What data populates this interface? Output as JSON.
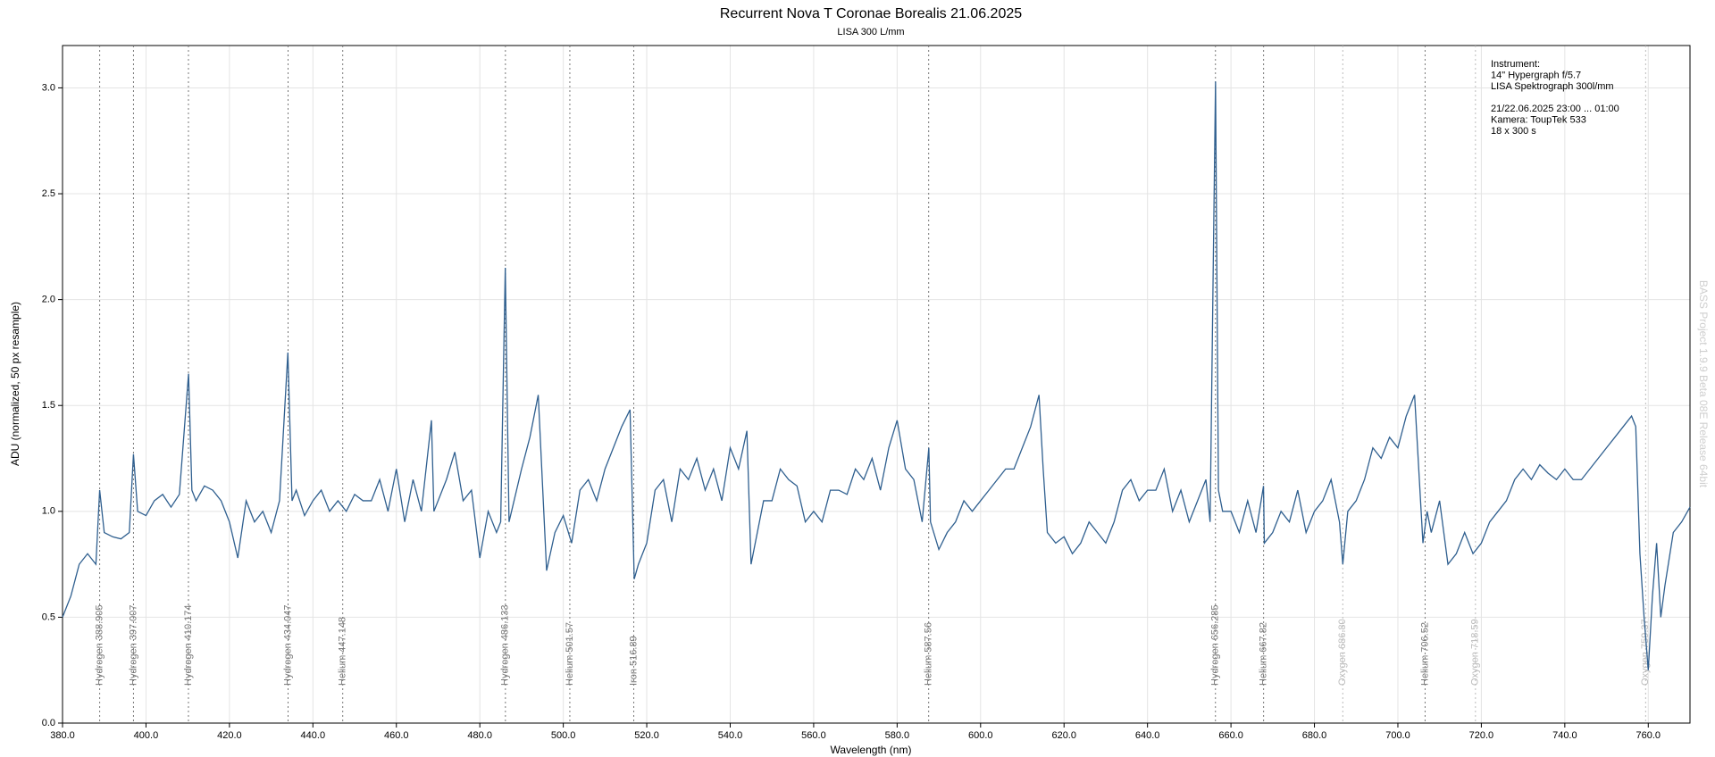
{
  "chart_data": {
    "type": "line",
    "title": "Recurrent Nova T Coronae Borealis  21.06.2025",
    "subtitle": "LISA 300 L/mm",
    "x_label": "Wavelength (nm)",
    "y_label": "ADU (normalized, 50 px resample)",
    "color": "#2f5f8f",
    "grid": true,
    "xlim": [
      380,
      770
    ],
    "ylim": [
      0,
      3.2
    ],
    "xticks": [
      {
        "value": 380,
        "label": "380.0"
      },
      {
        "value": 400,
        "label": "400.0"
      },
      {
        "value": 420,
        "label": "420.0"
      },
      {
        "value": 440,
        "label": "440.0"
      },
      {
        "value": 460,
        "label": "460.0"
      },
      {
        "value": 480,
        "label": "480.0"
      },
      {
        "value": 500,
        "label": "500.0"
      },
      {
        "value": 520,
        "label": "520.0"
      },
      {
        "value": 540,
        "label": "540.0"
      },
      {
        "value": 560,
        "label": "560.0"
      },
      {
        "value": 580,
        "label": "580.0"
      },
      {
        "value": 600,
        "label": "600.0"
      },
      {
        "value": 620,
        "label": "620.0"
      },
      {
        "value": 640,
        "label": "640.0"
      },
      {
        "value": 660,
        "label": "660.0"
      },
      {
        "value": 680,
        "label": "680.0"
      },
      {
        "value": 700,
        "label": "700.0"
      },
      {
        "value": 720,
        "label": "720.0"
      },
      {
        "value": 740,
        "label": "740.0"
      },
      {
        "value": 760,
        "label": "760.0"
      }
    ],
    "yticks": [
      {
        "value": 0,
        "label": "0.0"
      },
      {
        "value": 0.5,
        "label": "0.5"
      },
      {
        "value": 1,
        "label": "1.0"
      },
      {
        "value": 1.5,
        "label": "1.5"
      },
      {
        "value": 2,
        "label": "2.0"
      },
      {
        "value": 2.5,
        "label": "2.5"
      },
      {
        "value": 3,
        "label": "3.0"
      }
    ],
    "x": [
      380,
      382,
      384,
      386,
      388,
      388.9,
      390,
      392,
      394,
      396,
      397,
      398,
      400,
      402,
      404,
      406,
      408,
      410.2,
      411,
      412,
      414,
      416,
      418,
      420,
      422,
      424,
      426,
      428,
      430,
      432,
      434,
      435,
      436,
      438,
      440,
      442,
      444,
      446,
      448,
      450,
      452,
      454,
      456,
      458,
      460,
      462,
      464,
      466,
      468.4,
      469,
      472,
      474,
      476,
      478,
      480,
      482,
      484,
      485,
      486.1,
      487,
      490,
      492,
      494,
      496,
      498,
      500,
      502,
      504,
      506,
      508,
      510,
      512,
      514,
      516,
      517,
      518,
      520,
      522,
      524,
      526,
      528,
      530,
      532,
      534,
      536,
      538,
      540,
      542,
      544,
      545,
      546,
      548,
      550,
      552,
      554,
      556,
      558,
      560,
      562,
      564,
      566,
      568,
      570,
      572,
      574,
      576,
      578,
      580,
      582,
      584,
      586,
      587.6,
      588,
      590,
      592,
      594,
      596,
      598,
      600,
      602,
      604,
      606,
      608,
      610,
      612,
      614,
      615,
      616,
      618,
      620,
      622,
      624,
      626,
      628,
      630,
      632,
      634,
      636,
      638,
      640,
      642,
      644,
      646,
      648,
      650,
      652,
      654,
      655,
      656.3,
      657,
      658,
      660,
      662,
      664,
      666,
      667.8,
      668,
      670,
      672,
      674,
      676,
      678,
      680,
      682,
      684,
      686,
      686.8,
      688,
      690,
      692,
      694,
      696,
      698,
      700,
      702,
      704,
      705,
      706,
      707,
      708,
      710,
      712,
      714,
      716,
      718,
      720,
      722,
      724,
      726,
      728,
      730,
      732,
      734,
      736,
      738,
      740,
      742,
      744,
      746,
      748,
      750,
      752,
      754,
      756,
      757,
      758,
      759,
      760,
      761,
      762,
      763,
      764,
      766,
      768,
      770
    ],
    "values": [
      0.5,
      0.6,
      0.75,
      0.8,
      0.75,
      1.1,
      0.9,
      0.88,
      0.87,
      0.9,
      1.27,
      1.0,
      0.98,
      1.05,
      1.08,
      1.02,
      1.08,
      1.65,
      1.1,
      1.05,
      1.12,
      1.1,
      1.05,
      0.95,
      0.78,
      1.05,
      0.95,
      1.0,
      0.9,
      1.05,
      1.75,
      1.05,
      1.1,
      0.98,
      1.05,
      1.1,
      1.0,
      1.05,
      1.0,
      1.08,
      1.05,
      1.05,
      1.15,
      1.0,
      1.2,
      0.95,
      1.15,
      1.0,
      1.43,
      1.0,
      1.15,
      1.28,
      1.05,
      1.1,
      0.78,
      1.0,
      0.9,
      0.95,
      2.15,
      0.95,
      1.2,
      1.35,
      1.55,
      0.72,
      0.9,
      0.98,
      0.85,
      1.1,
      1.15,
      1.05,
      1.2,
      1.3,
      1.4,
      1.48,
      0.68,
      0.75,
      0.85,
      1.1,
      1.15,
      0.95,
      1.2,
      1.15,
      1.25,
      1.1,
      1.2,
      1.05,
      1.3,
      1.2,
      1.38,
      0.75,
      0.85,
      1.05,
      1.05,
      1.2,
      1.15,
      1.12,
      0.95,
      1.0,
      0.95,
      1.1,
      1.1,
      1.08,
      1.2,
      1.15,
      1.25,
      1.1,
      1.3,
      1.43,
      1.2,
      1.15,
      0.95,
      1.3,
      0.95,
      0.82,
      0.9,
      0.95,
      1.05,
      1.0,
      1.05,
      1.1,
      1.15,
      1.2,
      1.2,
      1.3,
      1.4,
      1.55,
      1.2,
      0.9,
      0.85,
      0.88,
      0.8,
      0.85,
      0.95,
      0.9,
      0.85,
      0.95,
      1.1,
      1.15,
      1.05,
      1.1,
      1.1,
      1.2,
      1.0,
      1.1,
      0.95,
      1.05,
      1.15,
      0.95,
      3.03,
      1.1,
      1.0,
      1.0,
      0.9,
      1.05,
      0.9,
      1.12,
      0.85,
      0.9,
      1.0,
      0.95,
      1.1,
      0.9,
      1.0,
      1.05,
      1.15,
      0.95,
      0.75,
      1.0,
      1.05,
      1.15,
      1.3,
      1.25,
      1.35,
      1.3,
      1.45,
      1.55,
      1.2,
      0.85,
      1.0,
      0.9,
      1.05,
      0.75,
      0.8,
      0.9,
      0.8,
      0.85,
      0.95,
      1.0,
      1.05,
      1.15,
      1.2,
      1.15,
      1.22,
      1.18,
      1.15,
      1.2,
      1.15,
      1.15,
      1.2,
      1.25,
      1.3,
      1.35,
      1.4,
      1.45,
      1.4,
      0.8,
      0.5,
      0.25,
      0.6,
      0.85,
      0.5,
      0.65,
      0.9,
      0.95,
      1.02
    ],
    "lines": [
      {
        "x": 388.905,
        "label": "Hydrogen 388.905",
        "color": "#777777"
      },
      {
        "x": 397.007,
        "label": "Hydrogen 397.007",
        "color": "#777777"
      },
      {
        "x": 410.174,
        "label": "Hydrogen 410.174",
        "color": "#777777"
      },
      {
        "x": 434.047,
        "label": "Hydrogen 434.047",
        "color": "#777777"
      },
      {
        "x": 447.148,
        "label": "Helium 447.148",
        "color": "#777777"
      },
      {
        "x": 486.133,
        "label": "Hydrogen 486.133",
        "color": "#777777"
      },
      {
        "x": 501.57,
        "label": "Helium 501.57",
        "color": "#777777"
      },
      {
        "x": 516.89,
        "label": "Iron 516.89",
        "color": "#777777"
      },
      {
        "x": 587.56,
        "label": "Helium 587.56",
        "color": "#777777"
      },
      {
        "x": 656.285,
        "label": "Hydrogen 656.285",
        "color": "#777777"
      },
      {
        "x": 667.82,
        "label": "Helium 667.82",
        "color": "#777777"
      },
      {
        "x": 686.8,
        "label": "Oxygen 686.80",
        "color": "#bbbbbb"
      },
      {
        "x": 706.52,
        "label": "Helium 706.52",
        "color": "#777777"
      },
      {
        "x": 718.59,
        "label": "Oxygen 718.59",
        "color": "#bbbbbb"
      },
      {
        "x": 759.37,
        "label": "Oxygen 759.37",
        "color": "#bbbbbb"
      }
    ],
    "annotations": [
      [
        "Instrument:",
        "14\" Hypergraph f/5.7",
        "LISA Spektrograph 300l/mm"
      ],
      [
        "21/22.06.2025  23:00 ... 01:00",
        "Kamera: ToupTek 533",
        "18 x 300 s"
      ]
    ],
    "watermark": "BASS Project 1.9.9 Beta 08E Release 64bit"
  }
}
